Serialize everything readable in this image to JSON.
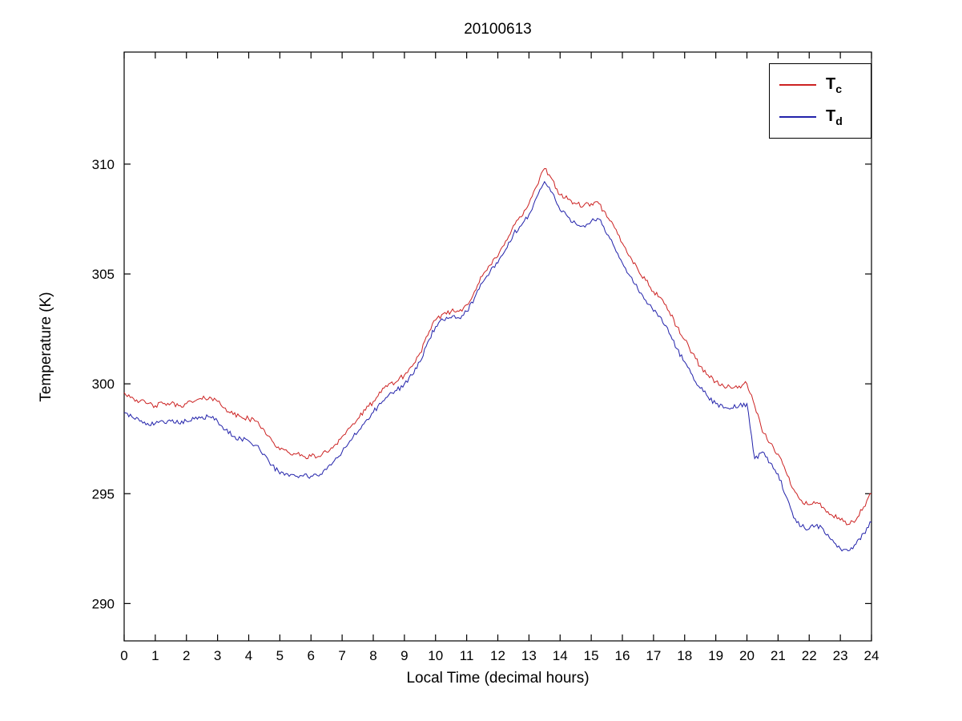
{
  "figure": {
    "title": "20100613"
  },
  "legend": {
    "entries": [
      {
        "main": "T",
        "sub": "c"
      },
      {
        "main": "T",
        "sub": "d"
      }
    ]
  },
  "chart_data": {
    "type": "line",
    "title": "20100613",
    "xlabel": "Local Time (decimal hours)",
    "ylabel": "Temperature (K)",
    "xlim": [
      0,
      24
    ],
    "ylim": [
      288.3,
      315.1
    ],
    "xticks": [
      0,
      1,
      2,
      3,
      4,
      5,
      6,
      7,
      8,
      9,
      10,
      11,
      12,
      13,
      14,
      15,
      16,
      17,
      18,
      19,
      20,
      21,
      22,
      23,
      24
    ],
    "yticks": [
      290,
      295,
      300,
      305,
      310
    ],
    "grid": false,
    "legend_position": "upper right",
    "noise_amplitude": 0.12,
    "x": [
      0,
      0.25,
      0.5,
      0.75,
      1,
      1.25,
      1.5,
      1.75,
      2,
      2.25,
      2.5,
      2.75,
      3,
      3.25,
      3.5,
      3.75,
      4,
      4.25,
      4.5,
      4.75,
      5,
      5.25,
      5.5,
      5.75,
      6,
      6.25,
      6.5,
      6.75,
      7,
      7.25,
      7.5,
      7.75,
      8,
      8.25,
      8.5,
      8.75,
      9,
      9.25,
      9.5,
      9.75,
      10,
      10.25,
      10.5,
      10.75,
      11,
      11.25,
      11.5,
      11.75,
      12,
      12.25,
      12.5,
      12.75,
      13,
      13.25,
      13.5,
      13.75,
      14,
      14.25,
      14.5,
      14.75,
      15,
      15.25,
      15.5,
      15.75,
      16,
      16.25,
      16.5,
      16.75,
      17,
      17.25,
      17.5,
      17.75,
      18,
      18.25,
      18.5,
      18.75,
      19,
      19.25,
      19.5,
      19.75,
      20,
      20.25,
      20.5,
      20.75,
      21,
      21.25,
      21.5,
      21.75,
      22,
      22.25,
      22.5,
      22.75,
      23,
      23.25,
      23.5,
      23.75,
      24
    ],
    "series": [
      {
        "name": "T_c",
        "color": "#cc2222",
        "values": [
          299.6,
          299.4,
          299.2,
          299.1,
          299.0,
          299.1,
          299.1,
          299.0,
          299.1,
          299.2,
          299.3,
          299.4,
          299.2,
          298.9,
          298.6,
          298.5,
          298.4,
          298.3,
          297.9,
          297.4,
          297.0,
          296.9,
          296.8,
          296.7,
          296.7,
          296.7,
          296.9,
          297.2,
          297.6,
          298.0,
          298.4,
          298.8,
          299.2,
          299.6,
          300.0,
          300.1,
          300.4,
          300.8,
          301.4,
          302.2,
          302.9,
          303.2,
          303.3,
          303.3,
          303.6,
          304.2,
          304.9,
          305.4,
          305.8,
          306.5,
          307.2,
          307.6,
          308.2,
          309.0,
          309.8,
          309.3,
          308.6,
          308.4,
          308.2,
          308.1,
          308.2,
          308.2,
          307.6,
          307.1,
          306.4,
          305.8,
          305.2,
          304.7,
          304.2,
          303.9,
          303.3,
          302.6,
          302.0,
          301.4,
          300.8,
          300.4,
          300.1,
          299.9,
          299.8,
          299.9,
          300.0,
          299.0,
          297.8,
          297.3,
          296.8,
          296.0,
          295.2,
          294.7,
          294.5,
          294.6,
          294.3,
          294.0,
          293.8,
          293.6,
          293.8,
          294.4,
          295.0
        ]
      },
      {
        "name": "T_d",
        "color": "#2222aa",
        "values": [
          298.7,
          298.5,
          298.3,
          298.2,
          298.2,
          298.3,
          298.3,
          298.2,
          298.3,
          298.4,
          298.5,
          298.5,
          298.3,
          297.9,
          297.6,
          297.5,
          297.4,
          297.2,
          296.8,
          296.3,
          295.9,
          295.9,
          295.8,
          295.8,
          295.8,
          295.8,
          296.1,
          296.5,
          296.9,
          297.4,
          297.8,
          298.3,
          298.7,
          299.1,
          299.5,
          299.7,
          300.0,
          300.4,
          301.0,
          301.9,
          302.6,
          302.9,
          303.0,
          303.0,
          303.3,
          303.9,
          304.6,
          305.1,
          305.5,
          306.1,
          306.8,
          307.2,
          307.7,
          308.5,
          309.2,
          308.7,
          307.9,
          307.6,
          307.3,
          307.2,
          307.4,
          307.5,
          306.8,
          306.2,
          305.5,
          304.9,
          304.3,
          303.8,
          303.3,
          303.0,
          302.3,
          301.6,
          301.0,
          300.4,
          299.8,
          299.4,
          299.1,
          298.9,
          298.9,
          299.0,
          299.1,
          296.6,
          296.9,
          296.4,
          295.9,
          294.9,
          293.9,
          293.5,
          293.4,
          293.6,
          293.2,
          292.9,
          292.5,
          292.4,
          292.7,
          293.2,
          293.7
        ]
      }
    ]
  }
}
